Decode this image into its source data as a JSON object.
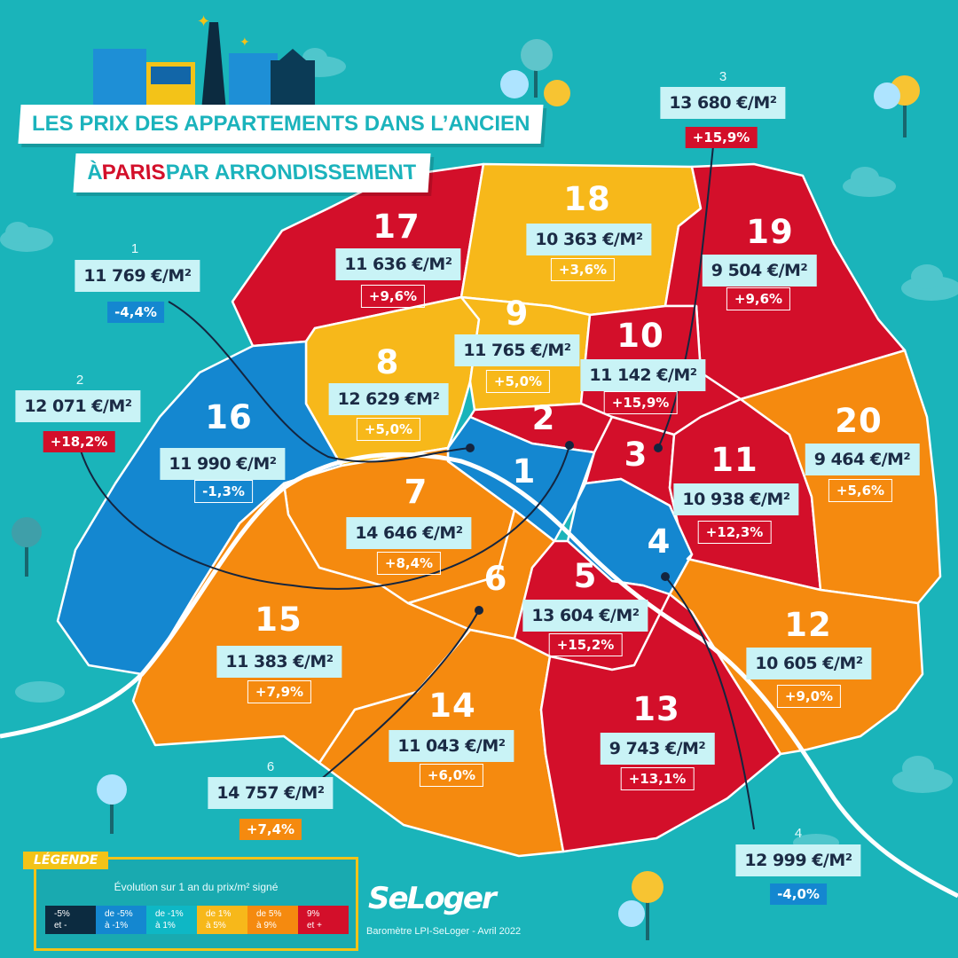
{
  "title": {
    "line1": "LES PRIX DES APPARTEMENTS DANS L’ANCIEN",
    "line2_prefix": "À ",
    "line2_highlight": "PARIS",
    "line2_suffix": " PAR ARRONDISSEMENT"
  },
  "colors": {
    "sea": "#1ab4ba",
    "very_negative": "#0c2b40",
    "negative": "#1487d0",
    "slightly_negative": "#0eb7c5",
    "slightly_positive": "#f7b81a",
    "positive": "#f58a0f",
    "high": "#d30f2a",
    "accent_paris": "#d30f2a",
    "title_text": "#1bb3bc"
  },
  "districts": [
    {
      "num": "1",
      "price": "11 769 €/M²",
      "change": "-4,4%",
      "level": "negative",
      "callout_num": "1"
    },
    {
      "num": "2",
      "price": "12 071 €/M²",
      "change": "+18,2%",
      "level": "high",
      "callout_num": "2"
    },
    {
      "num": "3",
      "price": "13 680 €/M²",
      "change": "+15,9%",
      "level": "high",
      "callout_num": "3"
    },
    {
      "num": "4",
      "price": "12 999 €/M²",
      "change": "-4,0%",
      "level": "negative",
      "callout_num": "4"
    },
    {
      "num": "5",
      "price": "13 604 €/M²",
      "change": "+15,2%",
      "level": "high"
    },
    {
      "num": "6",
      "price": "14 757 €/M²",
      "change": "+7,4%",
      "level": "positive",
      "callout_num": "6"
    },
    {
      "num": "7",
      "price": "14 646 €/M²",
      "change": "+8,4%",
      "level": "positive"
    },
    {
      "num": "8",
      "price": "12 629 €M²",
      "change": "+5,0%",
      "level": "slightly_positive"
    },
    {
      "num": "9",
      "price": "11 765 €/M²",
      "change": "+5,0%",
      "level": "slightly_positive"
    },
    {
      "num": "10",
      "price": "11 142 €/M²",
      "change": "+15,9%",
      "level": "high"
    },
    {
      "num": "11",
      "price": "10 938 €/M²",
      "change": "+12,3%",
      "level": "high"
    },
    {
      "num": "12",
      "price": "10 605 €/M²",
      "change": "+9,0%",
      "level": "positive"
    },
    {
      "num": "13",
      "price": "9 743 €/M²",
      "change": "+13,1%",
      "level": "high"
    },
    {
      "num": "14",
      "price": "11 043 €/M²",
      "change": "+6,0%",
      "level": "positive"
    },
    {
      "num": "15",
      "price": "11 383 €/M²",
      "change": "+7,9%",
      "level": "positive"
    },
    {
      "num": "16",
      "price": "11 990 €/M²",
      "change": "-1,3%",
      "level": "negative"
    },
    {
      "num": "17",
      "price": "11 636 €/M²",
      "change": "+9,6%",
      "level": "high"
    },
    {
      "num": "18",
      "price": "10 363 €/M²",
      "change": "+3,6%",
      "level": "slightly_positive"
    },
    {
      "num": "19",
      "price": "9 504 €/M²",
      "change": "+9,6%",
      "level": "high"
    },
    {
      "num": "20",
      "price": "9 464 €/M²",
      "change": "+5,6%",
      "level": "positive"
    }
  ],
  "legend": {
    "tag": "LÉGENDE",
    "subtitle": "Évolution sur 1 an du prix/m² signé",
    "items": [
      {
        "line1": "-5%",
        "line2": "et -",
        "level": "very_negative"
      },
      {
        "line1": "de -5%",
        "line2": "à -1%",
        "level": "negative"
      },
      {
        "line1": "de -1%",
        "line2": "à 1%",
        "level": "slightly_negative"
      },
      {
        "line1": "de 1%",
        "line2": "à 5%",
        "level": "slightly_positive"
      },
      {
        "line1": "de 5%",
        "line2": "à 9%",
        "level": "positive"
      },
      {
        "line1": "9%",
        "line2": "et +",
        "level": "high"
      }
    ]
  },
  "brand": "SeLoger",
  "source": "Baromètre LPI-SeLoger - Avril 2022",
  "icons": [
    "skyline-illustration",
    "tree-icon",
    "cloud-icon",
    "sparkle-icon"
  ]
}
